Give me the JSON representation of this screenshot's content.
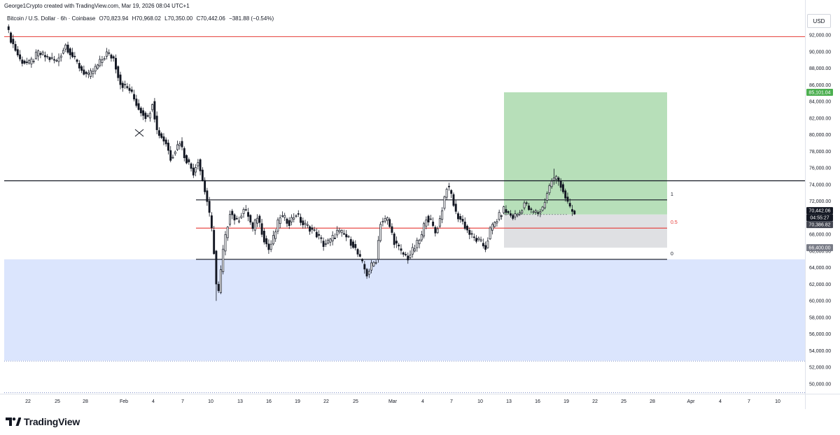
{
  "header": {
    "attribution": "George1Crypto created with TradingView.com, Mar 19, 2026 08:04 UTC+1",
    "symbol": "Bitcoin / U.S. Dollar · 6h · Coinbase",
    "open": "O70,823.94",
    "high": "H70,968.02",
    "low": "L70,350.00",
    "close": "C70,442.06",
    "change": "−381.88 (−0.54%)"
  },
  "price_axis": {
    "currency": "USD",
    "ticks": [
      "92,000.00",
      "90,000.00",
      "88,000.00",
      "86,000.00",
      "84,000.00",
      "82,000.00",
      "80,000.00",
      "78,000.00",
      "76,000.00",
      "74,000.00",
      "72,000.00",
      "70,000.00",
      "68,000.00",
      "66,000.00",
      "64,000.00",
      "62,000.00",
      "60,000.00",
      "58,000.00",
      "56,000.00",
      "54,000.00",
      "52,000.00",
      "50,000.00"
    ],
    "tick_values": [
      92000,
      90000,
      88000,
      86000,
      84000,
      82000,
      80000,
      78000,
      76000,
      74000,
      72000,
      70000,
      68000,
      66000,
      64000,
      62000,
      60000,
      58000,
      56000,
      54000,
      52000,
      50000
    ],
    "labels": {
      "target": "85,101.04",
      "last_price": "70,442.06",
      "countdown": "04:55:27",
      "entry": "70,386.82",
      "stop": "66,400.00"
    }
  },
  "time_axis": {
    "ticks": [
      "22",
      "25",
      "28",
      "Feb",
      "4",
      "7",
      "10",
      "13",
      "16",
      "19",
      "22",
      "25",
      "Mar",
      "4",
      "7",
      "10",
      "13",
      "16",
      "19",
      "22",
      "25",
      "28",
      "Apr",
      "4",
      "7",
      "10"
    ]
  },
  "fib_labels": {
    "top": "1",
    "mid": "0.5",
    "bottom": "0"
  },
  "colors": {
    "up_candle": "#131722",
    "down_candle": "#131722",
    "profit_zone": "#b7dfb9",
    "loss_zone": "#dfe0e3",
    "demand_zone": "#dbe5fd",
    "resistance_line": "#e53935",
    "target_badge": "#4caf50",
    "price_badge": "#131722",
    "entry_badge": "#434651",
    "stop_badge": "#787b86"
  },
  "chart_data": {
    "type": "candlestick",
    "timeframe": "6h",
    "ylim": [
      49000,
      93600
    ],
    "price_lines": [
      {
        "name": "resistance",
        "price": 91800
      },
      {
        "name": "horizontal-level",
        "price": 74450
      }
    ],
    "fib_levels": [
      {
        "level": "1",
        "price": 72150
      },
      {
        "level": "0.5",
        "price": 68750
      },
      {
        "level": "0",
        "price": 65000
      }
    ],
    "zones": [
      {
        "name": "demand",
        "from": 52800,
        "to": 65000
      },
      {
        "name": "profit",
        "from": 70386.82,
        "to": 85101.04
      },
      {
        "name": "loss",
        "from": 66400,
        "to": 70386.82
      }
    ],
    "position": {
      "side": "long",
      "entry": 70386.82,
      "target": 85101.04,
      "stop": 66400.0
    },
    "last": {
      "open": 70823.94,
      "high": 70968.02,
      "low": 70350.0,
      "close": 70442.06
    },
    "anchors": [
      [
        0,
        93000
      ],
      [
        2,
        91500
      ],
      [
        6,
        89000
      ],
      [
        10,
        88500
      ],
      [
        14,
        89800
      ],
      [
        18,
        89300
      ],
      [
        22,
        88800
      ],
      [
        26,
        90800
      ],
      [
        30,
        89000
      ],
      [
        33,
        87800
      ],
      [
        36,
        87000
      ],
      [
        40,
        88300
      ],
      [
        44,
        89800
      ],
      [
        47,
        89200
      ],
      [
        50,
        86200
      ],
      [
        54,
        85400
      ],
      [
        58,
        83200
      ],
      [
        62,
        82000
      ],
      [
        64,
        84000
      ],
      [
        66,
        80500
      ],
      [
        70,
        79000
      ],
      [
        72,
        77200
      ],
      [
        76,
        79200
      ],
      [
        78,
        77500
      ],
      [
        82,
        75500
      ],
      [
        84,
        77000
      ],
      [
        88,
        72000
      ],
      [
        90,
        68500
      ],
      [
        91,
        66000
      ],
      [
        92,
        62000
      ],
      [
        93,
        61000
      ],
      [
        95,
        66000
      ],
      [
        98,
        70800
      ],
      [
        101,
        69500
      ],
      [
        104,
        71000
      ],
      [
        106,
        70300
      ],
      [
        108,
        68500
      ],
      [
        110,
        70200
      ],
      [
        113,
        67500
      ],
      [
        115,
        66200
      ],
      [
        117,
        67500
      ],
      [
        120,
        70200
      ],
      [
        124,
        69500
      ],
      [
        127,
        70500
      ],
      [
        130,
        69200
      ],
      [
        133,
        68800
      ],
      [
        136,
        68000
      ],
      [
        139,
        66800
      ],
      [
        142,
        67200
      ],
      [
        145,
        68300
      ],
      [
        148,
        68000
      ],
      [
        152,
        66800
      ],
      [
        155,
        65000
      ],
      [
        158,
        63200
      ],
      [
        160,
        64200
      ],
      [
        162,
        65000
      ],
      [
        164,
        69500
      ],
      [
        167,
        69800
      ],
      [
        170,
        67200
      ],
      [
        173,
        65800
      ],
      [
        176,
        65200
      ],
      [
        179,
        66400
      ],
      [
        182,
        67800
      ],
      [
        184,
        70200
      ],
      [
        186,
        69500
      ],
      [
        188,
        68200
      ],
      [
        190,
        69800
      ],
      [
        193,
        73800
      ],
      [
        195,
        72800
      ],
      [
        197,
        70500
      ],
      [
        200,
        69500
      ],
      [
        202,
        68500
      ],
      [
        204,
        67700
      ],
      [
        207,
        67200
      ],
      [
        210,
        66400
      ],
      [
        212,
        68500
      ],
      [
        215,
        69800
      ],
      [
        218,
        71000
      ],
      [
        220,
        70500
      ],
      [
        222,
        70100
      ],
      [
        225,
        70600
      ],
      [
        227,
        71800
      ],
      [
        230,
        70700
      ],
      [
        233,
        70600
      ],
      [
        235,
        71200
      ],
      [
        237,
        73000
      ],
      [
        239,
        74500
      ],
      [
        241,
        74800
      ],
      [
        243,
        74000
      ],
      [
        245,
        72500
      ],
      [
        247,
        71000
      ],
      [
        249,
        70450
      ]
    ]
  }
}
